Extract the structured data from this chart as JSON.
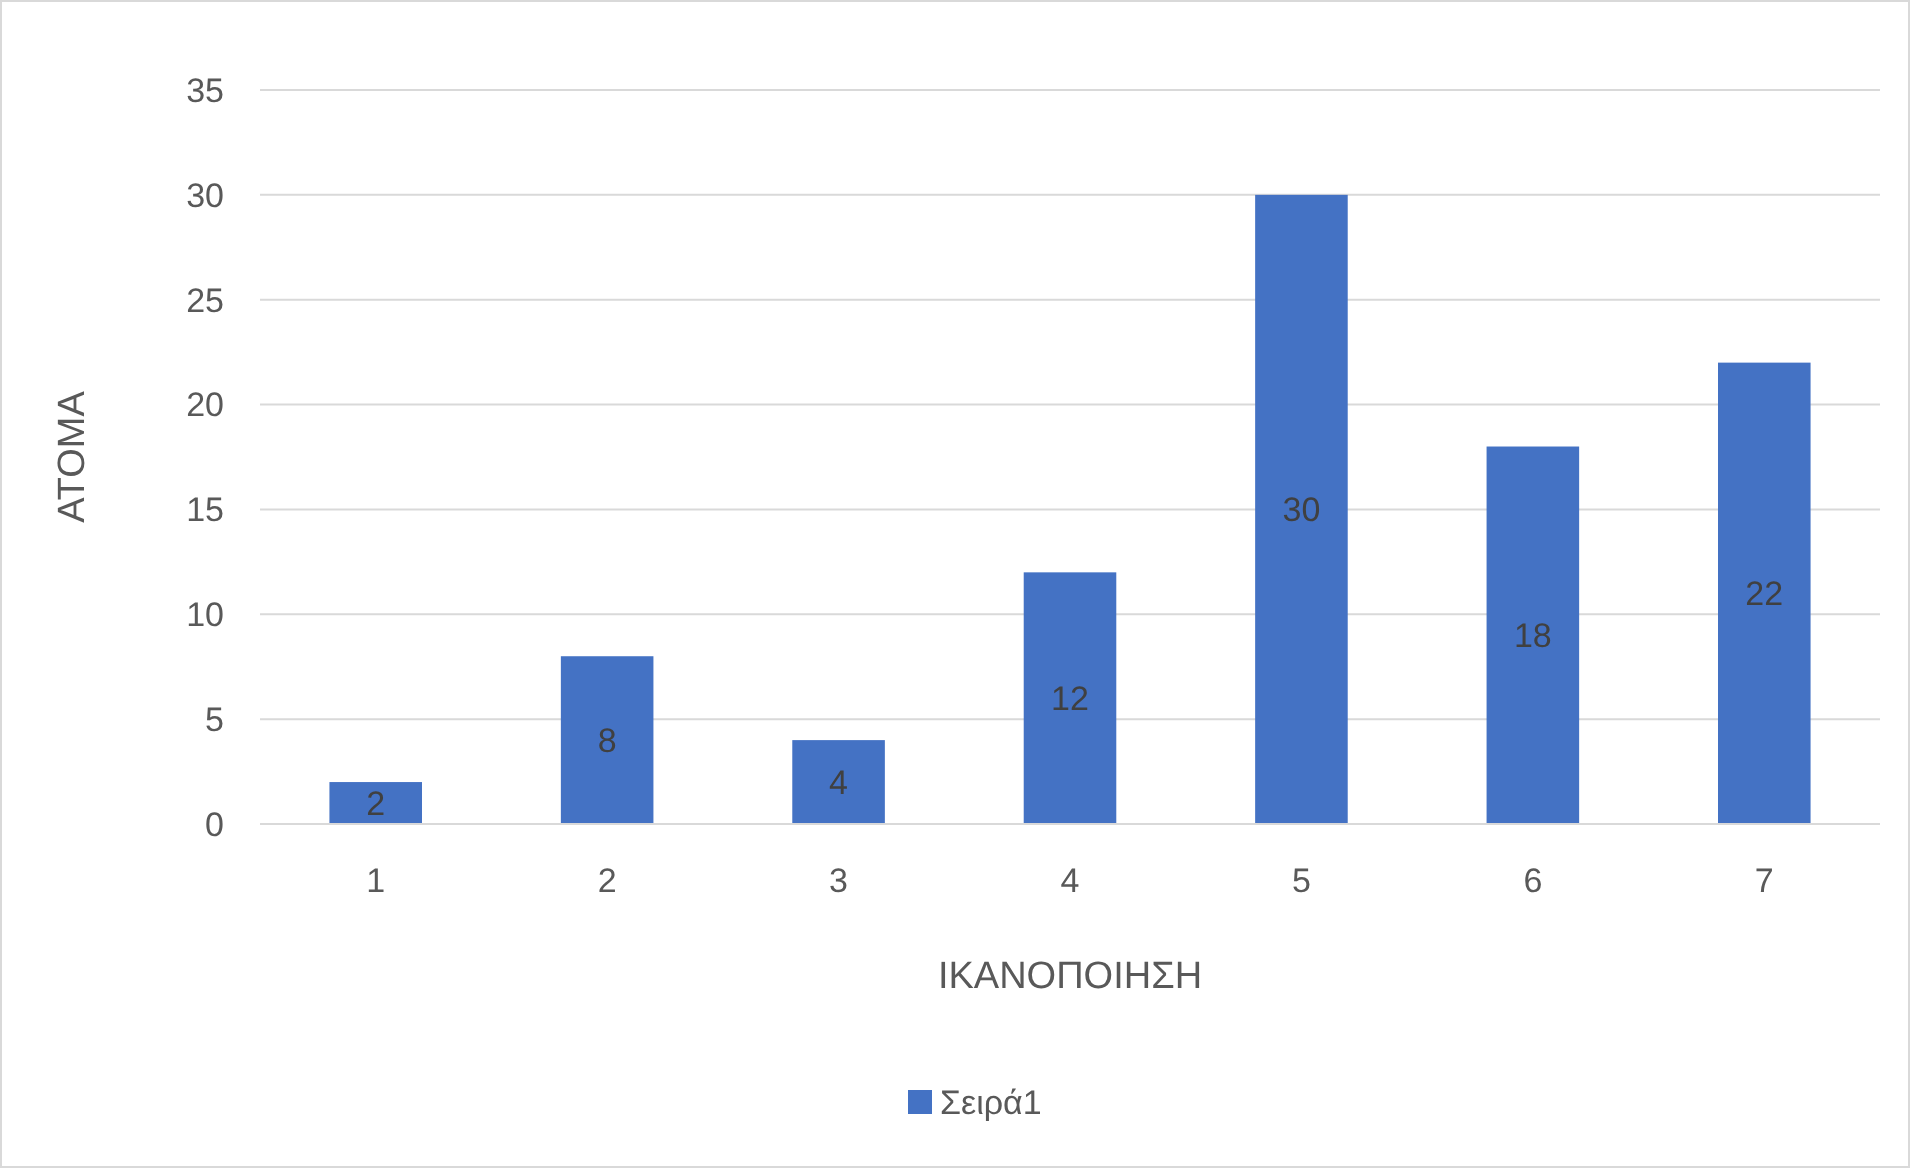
{
  "chart_data": {
    "type": "bar",
    "xlabel": "ΙΚΑΝΟΠΟΙΗΣΗ",
    "ylabel": "ΑΤΟΜΑ",
    "categories": [
      "1",
      "2",
      "3",
      "4",
      "5",
      "6",
      "7"
    ],
    "series": [
      {
        "name": "Σειρά1",
        "color": "#4472c4",
        "values": [
          2,
          8,
          4,
          12,
          30,
          18,
          22
        ]
      }
    ],
    "ylim": [
      0,
      35
    ],
    "yticks": [
      0,
      5,
      10,
      15,
      20,
      25,
      30,
      35
    ],
    "grid": "y",
    "legend": "bottom",
    "data_labels": true
  }
}
